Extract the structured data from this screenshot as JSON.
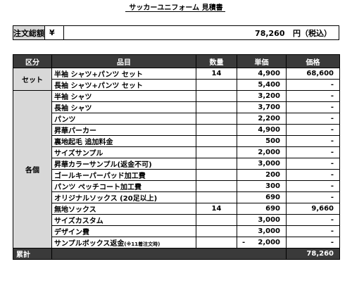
{
  "doc": {
    "title": "サッカーユニフォーム 見積書"
  },
  "total": {
    "label": "注文総額",
    "currency": "¥",
    "amount": "78,260",
    "unit": "円（税込）"
  },
  "table": {
    "headers": [
      "区分",
      "品目",
      "数量",
      "単価",
      "価格"
    ],
    "groups": [
      {
        "category": "セット",
        "rows": [
          {
            "item": "半袖 シャツ+パンツ セット",
            "qty": "14",
            "unit_price": "4,900",
            "price": "68,600"
          },
          {
            "item": "長袖 シャツ+パンツ セット",
            "qty": "",
            "unit_price": "5,400",
            "price": "-"
          }
        ]
      },
      {
        "category": "各個",
        "rows": [
          {
            "item": "半袖 シャツ",
            "qty": "",
            "unit_price": "3,200",
            "price": "-"
          },
          {
            "item": "長袖 シャツ",
            "qty": "",
            "unit_price": "3,700",
            "price": "-"
          },
          {
            "item": "パンツ",
            "qty": "",
            "unit_price": "2,200",
            "price": "-"
          },
          {
            "item": "昇華パーカー",
            "qty": "",
            "unit_price": "4,900",
            "price": "-"
          },
          {
            "item": "裏地起毛 追加料金",
            "qty": "",
            "unit_price": "500",
            "price": "-"
          },
          {
            "item": "サイズサンプル",
            "qty": "",
            "unit_price": "2,000",
            "price": "-"
          },
          {
            "item": "昇華カラーサンプル(返金不可)",
            "qty": "",
            "unit_price": "3,000",
            "price": "-"
          },
          {
            "item": "ゴールキーパーパッド加工費",
            "qty": "",
            "unit_price": "200",
            "price": "-"
          },
          {
            "item": "パンツ ペッチコート加工費",
            "qty": "",
            "unit_price": "300",
            "price": "-"
          },
          {
            "item": "オリジナルソックス (20足以上)",
            "qty": "",
            "unit_price": "690",
            "price": "-"
          },
          {
            "item": "無地ソックス",
            "qty": "14",
            "unit_price": "690",
            "price": "9,660"
          },
          {
            "item": "サイズカスタム",
            "qty": "",
            "unit_price": "3,000",
            "price": "-"
          },
          {
            "item": "デザイン費",
            "qty": "",
            "unit_price": "3,000",
            "price": "-"
          },
          {
            "item": "サンプルボックス返金",
            "item_note": "(※11着注文時)",
            "qty": "",
            "unit_price_prefix": "-",
            "unit_price": "2,000",
            "price": "-"
          }
        ]
      }
    ],
    "summary": {
      "label": "累計",
      "price": "78,260"
    }
  }
}
